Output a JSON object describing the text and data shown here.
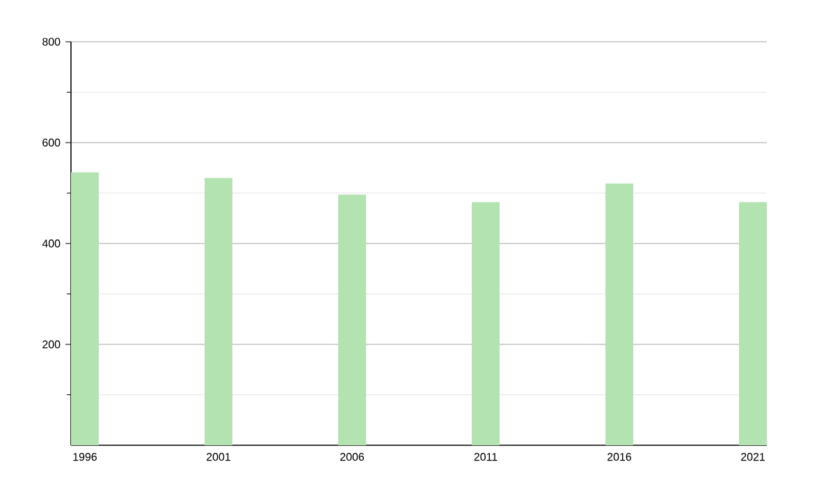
{
  "chart_data": {
    "type": "bar",
    "categories": [
      "1996",
      "2001",
      "2006",
      "2011",
      "2016",
      "2021"
    ],
    "values": [
      541,
      530,
      497,
      482,
      519,
      482
    ],
    "color": "#b3e3b0",
    "ylim": [
      0,
      800
    ],
    "yticks": [
      {
        "value": 100,
        "label": null
      },
      200,
      {
        "value": 300,
        "label": null
      },
      400,
      {
        "value": 500,
        "label": null
      },
      600,
      {
        "value": 700,
        "label": null
      },
      800
    ],
    "grid": "y"
  }
}
